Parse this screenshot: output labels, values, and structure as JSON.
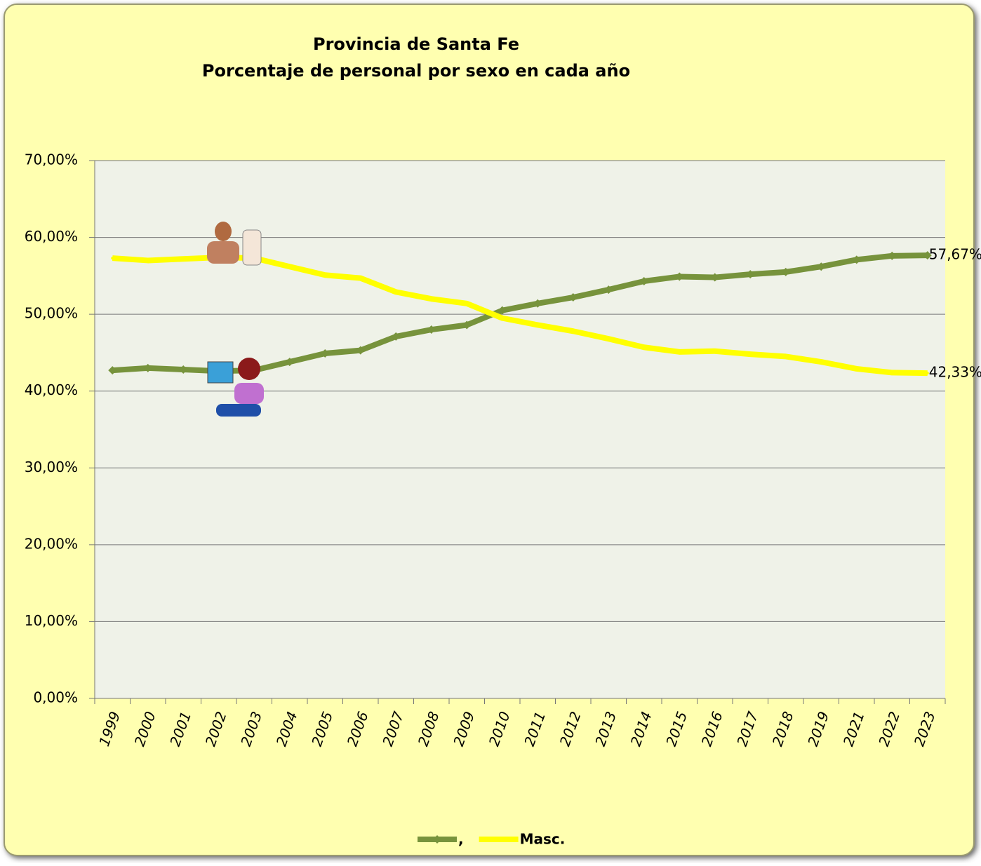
{
  "chart_data": {
    "type": "line",
    "title": "Provincia de Santa Fe",
    "subtitle": "Porcentaje de personal por sexo en cada año",
    "categories": [
      "1999",
      "2000",
      "2001",
      "2002",
      "2003",
      "2004",
      "2005",
      "2006",
      "2007",
      "2008",
      "2009",
      "2010",
      "2011",
      "2012",
      "2013",
      "2014",
      "2015",
      "2016",
      "2017",
      "2018",
      "2019",
      "2021",
      "2022",
      "2023"
    ],
    "series": [
      {
        "name": ",",
        "color": "#77933c",
        "marker": "diamond",
        "values": [
          42.7,
          43.0,
          42.8,
          42.6,
          42.7,
          43.8,
          44.9,
          45.3,
          47.1,
          48.0,
          48.6,
          50.5,
          51.4,
          52.2,
          53.2,
          54.3,
          54.9,
          54.8,
          55.2,
          55.5,
          56.2,
          57.1,
          57.6,
          57.67
        ],
        "value_labels": [
          null,
          null,
          null,
          null,
          null,
          null,
          null,
          null,
          null,
          null,
          null,
          null,
          null,
          null,
          null,
          null,
          null,
          null,
          null,
          null,
          null,
          null,
          null,
          "57,67%"
        ]
      },
      {
        "name": "Masc.",
        "color": "#ffff00",
        "values": [
          57.3,
          57.0,
          57.2,
          57.4,
          57.3,
          56.2,
          55.1,
          54.7,
          52.9,
          52.0,
          51.4,
          49.5,
          48.6,
          47.8,
          46.8,
          45.7,
          45.1,
          45.2,
          44.8,
          44.5,
          43.8,
          42.9,
          42.4,
          42.33
        ],
        "value_labels": [
          null,
          null,
          null,
          null,
          null,
          null,
          null,
          null,
          null,
          null,
          null,
          null,
          null,
          null,
          null,
          null,
          null,
          null,
          null,
          null,
          null,
          null,
          null,
          "42,33%"
        ]
      }
    ],
    "ylim": [
      0,
      70
    ],
    "yticks": [
      {
        "value": 0,
        "label": "0,00%"
      },
      {
        "value": 10,
        "label": "10,00%"
      },
      {
        "value": 20,
        "label": "20,00%"
      },
      {
        "value": 30,
        "label": "30,00%"
      },
      {
        "value": 40,
        "label": "40,00%"
      },
      {
        "value": 50,
        "label": "50,00%"
      },
      {
        "value": 60,
        "label": "60,00%"
      },
      {
        "value": 70,
        "label": "70,00%"
      }
    ],
    "grid": true,
    "legend": "bottom"
  }
}
